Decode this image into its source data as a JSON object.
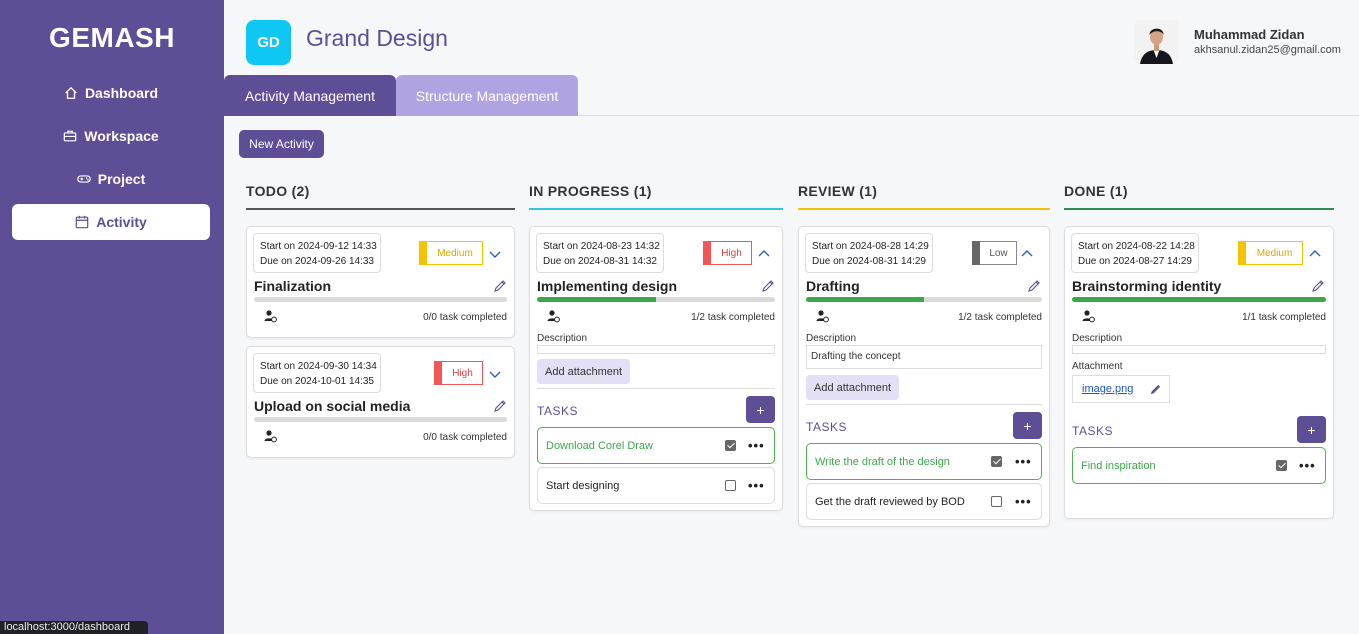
{
  "sidebar": {
    "brand": "GEMASH",
    "items": [
      {
        "label": "Dashboard",
        "icon": "home-icon"
      },
      {
        "label": "Workspace",
        "icon": "briefcase-icon"
      },
      {
        "label": "Project",
        "icon": "gamepad-icon"
      },
      {
        "label": "Activity",
        "icon": "calendar-icon",
        "active": true
      }
    ]
  },
  "header": {
    "logo_initials": "GD",
    "project_title": "Grand Design",
    "user": {
      "name": "Muhammad Zidan",
      "email": "akhsanul.zidan25@gmail.com"
    }
  },
  "tabs": [
    {
      "label": "Activity Management",
      "active": true
    },
    {
      "label": "Structure Management",
      "active": false
    }
  ],
  "new_activity_label": "New Activity",
  "colors": {
    "primary": "#5e4e96",
    "tab_inactive": "#b0a3e2",
    "logo": "#0ec7f2",
    "todo": "#555555",
    "in_progress": "#2ec7d8",
    "review": "#f2c10a",
    "done": "#2e8b57",
    "high": "#f25757",
    "medium": "#f5c400",
    "low": "#666666",
    "progress": "#3aa84a"
  },
  "columns": [
    {
      "title": "TODO (2)",
      "cards": [
        {
          "start": "Start on 2024-09-12 14:33",
          "due": "Due on 2024-09-26 14:33",
          "priority": "Medium",
          "title": "Finalization",
          "progress": 0,
          "count": "0/0 task completed"
        },
        {
          "start": "Start on 2024-09-30 14:34",
          "due": "Due on 2024-10-01 14:35",
          "priority": "High",
          "title": "Upload on social media",
          "progress": 0,
          "count": "0/0 task completed"
        }
      ]
    },
    {
      "title": "IN PROGRESS (1)",
      "cards": [
        {
          "start": "Start on 2024-08-23 14:32",
          "due": "Due on 2024-08-31 14:32",
          "priority": "High",
          "title": "Implementing design",
          "progress": 0.5,
          "count": "1/2 task completed",
          "description_label": "Description",
          "description": "",
          "attach_label": "Add attachment",
          "tasks_label": "TASKS",
          "tasks": [
            {
              "text": "Download Corel Draw",
              "done": true
            },
            {
              "text": "Start designing",
              "done": false
            }
          ]
        }
      ]
    },
    {
      "title": "REVIEW (1)",
      "cards": [
        {
          "start": "Start on 2024-08-28 14:29",
          "due": "Due on 2024-08-31 14:29",
          "priority": "Low",
          "title": "Drafting",
          "progress": 0.5,
          "count": "1/2 task completed",
          "description_label": "Description",
          "description": "Drafting the concept",
          "attach_label": "Add attachment",
          "tasks_label": "TASKS",
          "tasks": [
            {
              "text": "Write the draft of the design",
              "done": true
            },
            {
              "text": "Get the draft reviewed by BOD",
              "done": false
            }
          ]
        }
      ]
    },
    {
      "title": "DONE (1)",
      "cards": [
        {
          "start": "Start on 2024-08-22 14:28",
          "due": "Due on 2024-08-27 14:29",
          "priority": "Medium",
          "title": "Brainstorming identity",
          "progress": 1,
          "count": "1/1 task completed",
          "description_label": "Description",
          "description": "",
          "attachment_label": "Attachment",
          "attachment_file": "image.png",
          "tasks_label": "TASKS",
          "tasks": [
            {
              "text": "Find inspiration",
              "done": true
            }
          ]
        }
      ]
    }
  ],
  "plus": "+",
  "more": "•••",
  "status_url": "localhost:3000/dashboard"
}
